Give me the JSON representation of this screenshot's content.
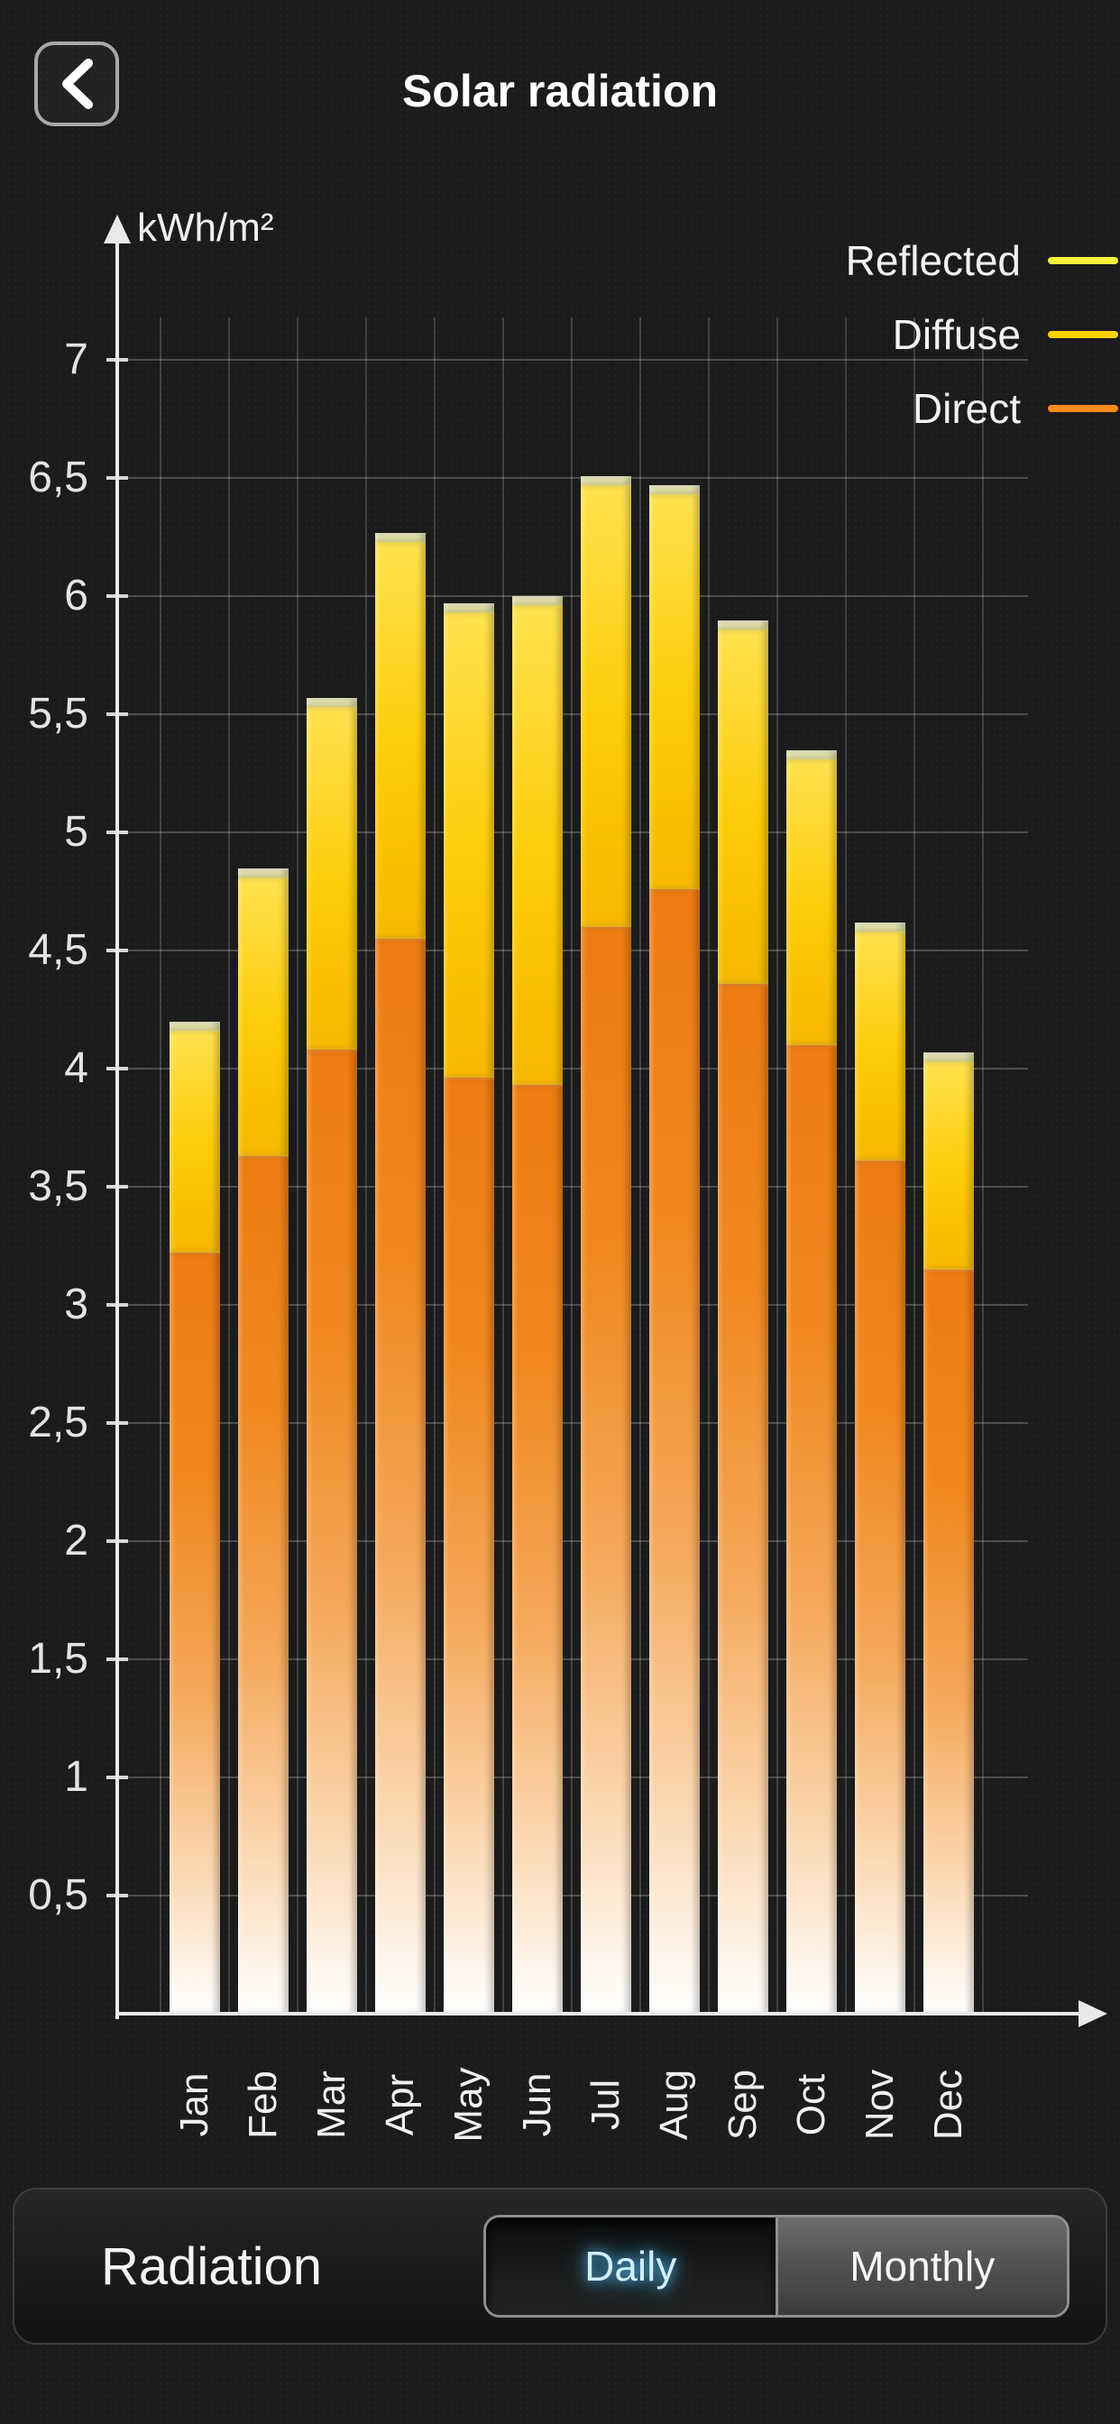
{
  "header": {
    "title": "Solar radiation",
    "back_icon": "chevron-left"
  },
  "chart": {
    "y_axis_unit": "kWh/m²",
    "legend": [
      {
        "label": "Reflected",
        "color": "#f6f23c"
      },
      {
        "label": "Diffuse",
        "color": "#ffd200"
      },
      {
        "label": "Direct",
        "color": "#ff8a1e"
      }
    ]
  },
  "chart_data": {
    "type": "bar",
    "stacked": true,
    "title": "Solar radiation",
    "ylabel": "kWh/m²",
    "xlabel": "",
    "ylim": [
      0,
      7.5
    ],
    "grid": true,
    "legend_position": "top-right",
    "categories": [
      "Jan",
      "Feb",
      "Mar",
      "Apr",
      "May",
      "Jun",
      "Jul",
      "Aug",
      "Sep",
      "Oct",
      "Nov",
      "Dec"
    ],
    "series": [
      {
        "name": "Direct",
        "color": "#ee7c12",
        "values": [
          3.22,
          3.63,
          4.08,
          4.55,
          3.96,
          3.93,
          4.6,
          4.76,
          4.36,
          4.1,
          3.61,
          3.15
        ]
      },
      {
        "name": "Diffuse",
        "color": "#fdcb06",
        "values": [
          0.94,
          1.18,
          1.45,
          1.68,
          1.97,
          2.03,
          1.87,
          1.67,
          1.5,
          1.21,
          0.97,
          0.88
        ]
      },
      {
        "name": "Reflected",
        "color": "#d8d68e",
        "values": [
          0.04,
          0.04,
          0.04,
          0.04,
          0.04,
          0.04,
          0.04,
          0.04,
          0.04,
          0.04,
          0.04,
          0.04
        ]
      }
    ],
    "totals": [
      4.2,
      4.85,
      5.57,
      6.27,
      5.97,
      6.0,
      6.51,
      6.47,
      5.9,
      5.35,
      4.62,
      4.07
    ],
    "y_ticks": [
      {
        "value": 0.5,
        "label": "0,5"
      },
      {
        "value": 1.0,
        "label": "1"
      },
      {
        "value": 1.5,
        "label": "1,5"
      },
      {
        "value": 2.0,
        "label": "2"
      },
      {
        "value": 2.5,
        "label": "2,5"
      },
      {
        "value": 3.0,
        "label": "3"
      },
      {
        "value": 3.5,
        "label": "3,5"
      },
      {
        "value": 4.0,
        "label": "4"
      },
      {
        "value": 4.5,
        "label": "4,5"
      },
      {
        "value": 5.0,
        "label": "5"
      },
      {
        "value": 5.5,
        "label": "5,5"
      },
      {
        "value": 6.0,
        "label": "6"
      },
      {
        "value": 6.5,
        "label": "6,5"
      },
      {
        "value": 7.0,
        "label": "7"
      }
    ]
  },
  "footer": {
    "label": "Radiation",
    "segments": [
      {
        "label": "Daily",
        "selected": true
      },
      {
        "label": "Monthly",
        "selected": false
      }
    ]
  }
}
